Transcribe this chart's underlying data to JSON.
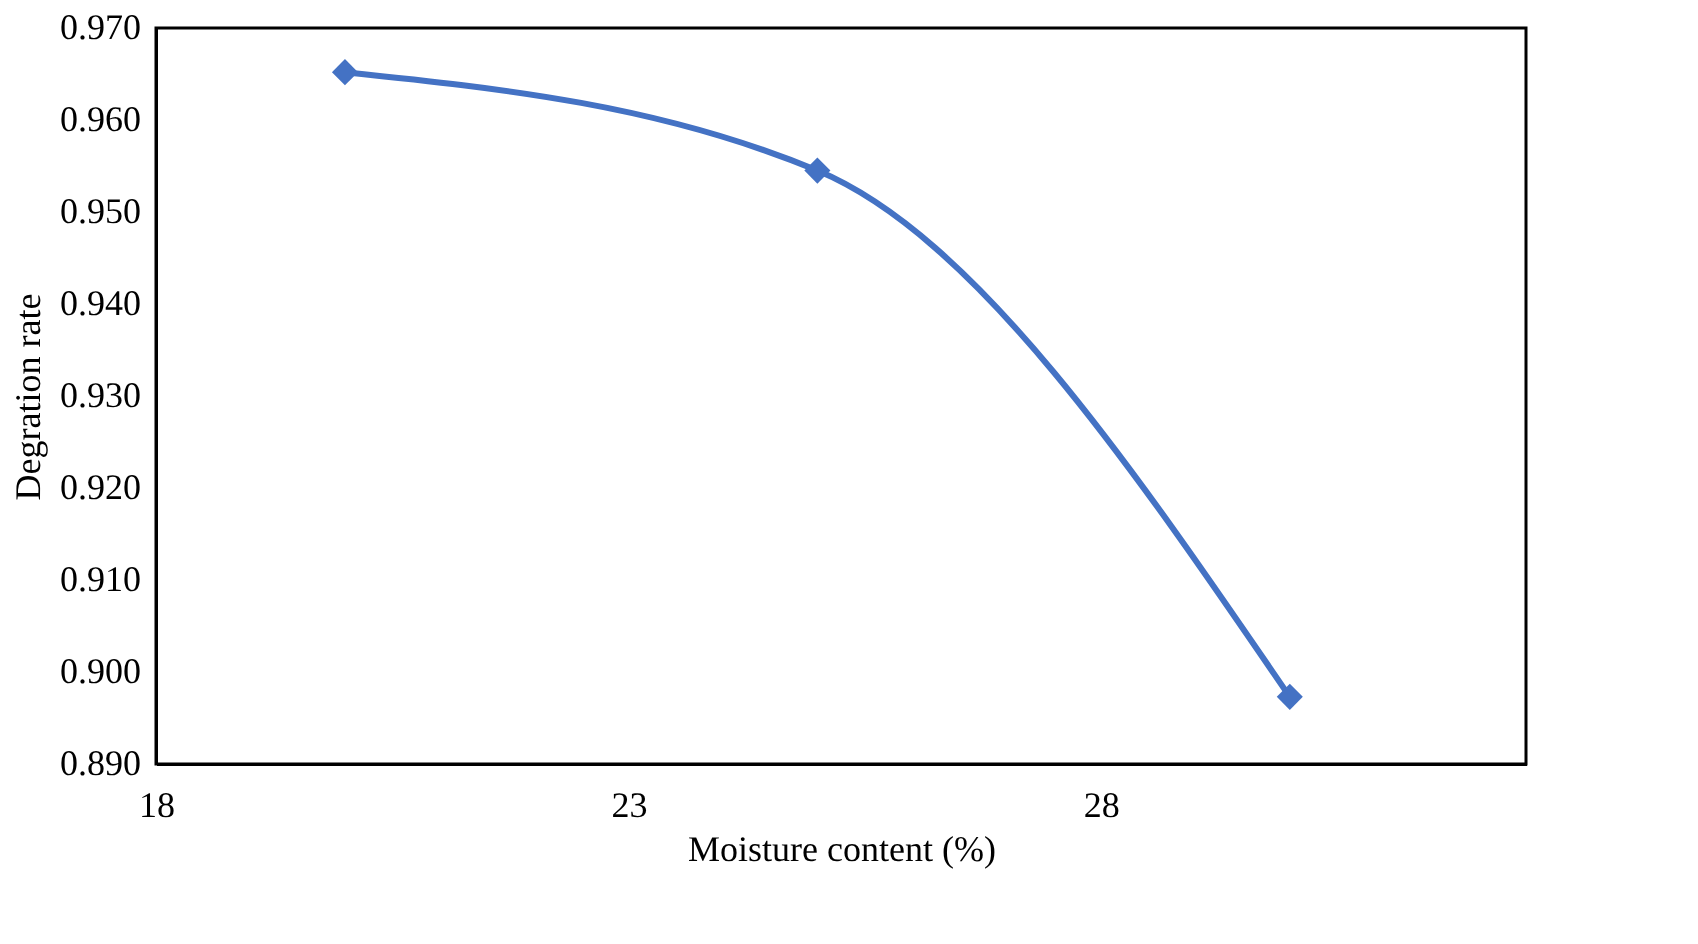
{
  "chart_data": {
    "type": "line",
    "xlabel": "Moisture content (%)",
    "ylabel": "Degration rate",
    "x": [
      20,
      25,
      30
    ],
    "series": [
      {
        "color": "#4472c4",
        "values": [
          0.9652,
          0.9545,
          0.8973
        ]
      }
    ],
    "xlim": [
      18,
      32.5
    ],
    "xticks": [
      18,
      23,
      28
    ],
    "ylim": [
      0.89,
      0.97
    ],
    "yticks": [
      {
        "value": 0.89,
        "label": "0.890"
      },
      {
        "value": 0.9,
        "label": "0.900"
      },
      {
        "value": 0.91,
        "label": "0.910"
      },
      {
        "value": 0.92,
        "label": "0.920"
      },
      {
        "value": 0.93,
        "label": "0.930"
      },
      {
        "value": 0.94,
        "label": "0.940"
      },
      {
        "value": 0.95,
        "label": "0.950"
      },
      {
        "value": 0.96,
        "label": "0.960"
      },
      {
        "value": 0.97,
        "label": "0.970"
      }
    ],
    "marker": "diamond",
    "line_style": "solid",
    "grid": false
  }
}
